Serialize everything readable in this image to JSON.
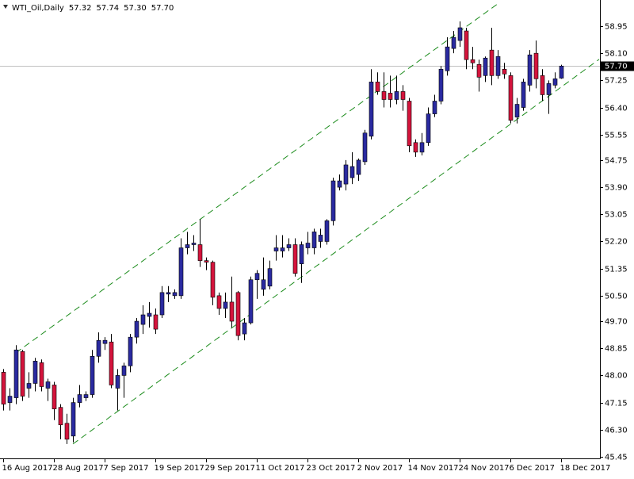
{
  "chart_data": {
    "type": "candlestick",
    "symbol": "WTI_Oil,Daily",
    "header_values": [
      "57.32",
      "57.74",
      "57.30",
      "57.70"
    ],
    "categories": [
      "16 Aug 2017",
      null,
      null,
      null,
      null,
      null,
      null,
      null,
      "28 Aug 2017",
      null,
      null,
      null,
      null,
      null,
      null,
      null,
      "7 Sep 2017",
      null,
      null,
      null,
      null,
      null,
      null,
      null,
      "19 Sep 2017",
      null,
      null,
      null,
      null,
      null,
      null,
      null,
      "29 Sep 2017",
      null,
      null,
      null,
      null,
      null,
      null,
      null,
      "11 Oct 2017",
      null,
      null,
      null,
      null,
      null,
      null,
      null,
      "23 Oct 2017",
      null,
      null,
      null,
      null,
      null,
      null,
      null,
      "2 Nov 2017",
      null,
      null,
      null,
      null,
      null,
      null,
      null,
      "14 Nov 2017",
      null,
      null,
      null,
      null,
      null,
      null,
      null,
      "24 Nov 2017",
      null,
      null,
      null,
      null,
      null,
      null,
      null,
      "6 Dec 2017",
      null,
      null,
      null,
      null,
      null,
      null,
      null,
      "18 Dec 2017"
    ],
    "open": [
      48.1,
      47.15,
      47.3,
      48.75,
      47.6,
      47.75,
      48.4,
      47.6,
      47.7,
      47.0,
      46.5,
      46.1,
      47.15,
      47.3,
      47.4,
      48.6,
      49.0,
      49.05,
      47.6,
      48.0,
      48.3,
      49.2,
      49.6,
      49.85,
      49.9,
      49.9,
      50.55,
      50.5,
      50.5,
      52.0,
      52.1,
      52.1,
      51.6,
      51.55,
      50.5,
      50.1,
      50.3,
      50.6,
      49.3,
      49.65,
      51.0,
      50.7,
      50.8,
      51.9,
      51.9,
      52.0,
      52.1,
      51.5,
      52.0,
      52.0,
      52.2,
      52.2,
      52.85,
      53.9,
      54.0,
      54.2,
      54.3,
      54.7,
      55.5,
      57.2,
      56.9,
      56.85,
      56.65,
      56.9,
      56.6,
      55.3,
      55.0,
      55.3,
      56.2,
      56.6,
      57.55,
      58.25,
      58.5,
      58.8,
      57.9,
      57.75,
      57.4,
      58.2,
      57.4,
      57.6,
      57.4,
      56.1,
      56.4,
      57.1,
      58.1,
      57.4,
      56.8,
      57.1,
      57.32
    ],
    "high": [
      48.2,
      47.6,
      48.95,
      48.8,
      48.1,
      48.55,
      48.5,
      47.9,
      47.8,
      47.1,
      46.8,
      47.3,
      47.7,
      47.5,
      48.8,
      49.35,
      49.2,
      49.3,
      48.2,
      48.4,
      49.3,
      49.8,
      50.2,
      50.3,
      50.1,
      50.8,
      50.8,
      50.7,
      52.3,
      52.5,
      52.4,
      52.9,
      51.7,
      51.6,
      50.6,
      50.6,
      51.1,
      50.65,
      49.8,
      51.1,
      51.3,
      51.7,
      51.6,
      52.4,
      52.4,
      52.3,
      52.3,
      52.2,
      52.5,
      52.6,
      52.6,
      52.9,
      54.2,
      54.3,
      54.75,
      55.0,
      54.8,
      55.7,
      57.6,
      57.5,
      57.5,
      57.4,
      57.4,
      57.1,
      56.7,
      55.4,
      55.6,
      56.4,
      56.8,
      57.7,
      58.6,
      58.8,
      59.1,
      58.9,
      58.3,
      57.9,
      58.0,
      58.9,
      58.2,
      57.8,
      57.5,
      56.7,
      57.3,
      58.2,
      58.5,
      57.6,
      57.25,
      57.5,
      57.74
    ],
    "low": [
      46.9,
      46.9,
      47.1,
      47.2,
      47.3,
      47.5,
      47.5,
      47.2,
      46.6,
      46.0,
      45.85,
      45.9,
      47.0,
      47.2,
      47.3,
      48.4,
      48.8,
      47.6,
      46.9,
      47.3,
      48.1,
      49.0,
      49.3,
      49.5,
      49.3,
      49.8,
      50.3,
      50.4,
      50.4,
      51.8,
      51.9,
      51.4,
      51.3,
      50.2,
      49.9,
      49.8,
      49.5,
      49.1,
      49.1,
      49.6,
      50.4,
      50.5,
      50.7,
      51.6,
      51.7,
      51.9,
      51.1,
      50.9,
      51.8,
      51.8,
      52.0,
      52.1,
      52.7,
      53.8,
      53.8,
      54.0,
      54.1,
      54.6,
      55.4,
      56.8,
      56.4,
      56.4,
      56.5,
      56.3,
      55.0,
      54.85,
      54.9,
      55.2,
      56.1,
      56.5,
      57.4,
      58.1,
      58.3,
      57.6,
      57.6,
      56.9,
      57.2,
      57.1,
      57.3,
      57.3,
      55.9,
      55.9,
      56.3,
      56.9,
      57.0,
      56.6,
      56.2,
      57.0,
      57.3
    ],
    "close": [
      47.1,
      47.35,
      48.8,
      47.35,
      47.75,
      48.45,
      47.65,
      47.8,
      46.95,
      46.45,
      46.0,
      47.15,
      47.4,
      47.4,
      48.6,
      49.1,
      49.1,
      47.7,
      48.0,
      48.3,
      49.2,
      49.7,
      49.9,
      49.95,
      49.45,
      50.6,
      50.6,
      50.6,
      52.0,
      52.1,
      52.15,
      51.6,
      51.55,
      50.45,
      50.1,
      50.3,
      49.7,
      49.25,
      49.65,
      51.0,
      51.2,
      51.0,
      51.35,
      52.0,
      52.0,
      52.1,
      51.2,
      52.1,
      52.15,
      52.5,
      52.4,
      52.85,
      54.1,
      54.1,
      54.6,
      54.55,
      54.75,
      55.6,
      57.2,
      56.9,
      56.65,
      56.65,
      56.9,
      56.65,
      55.2,
      55.0,
      55.3,
      56.2,
      56.6,
      57.6,
      58.3,
      58.6,
      58.9,
      57.9,
      57.8,
      57.35,
      57.95,
      57.4,
      58.0,
      57.45,
      56.0,
      56.5,
      57.2,
      58.05,
      57.3,
      56.8,
      57.15,
      57.3,
      57.7
    ],
    "up_color": "#2a2aa0",
    "down_color": "#d4143c",
    "last_price": {
      "value": 57.7,
      "label": "57.70"
    },
    "channels": [
      {
        "x": [
          2,
          78
        ],
        "y": [
          48.71,
          59.65
        ]
      },
      {
        "x": [
          11,
          94
        ],
        "y": [
          45.85,
          57.91
        ]
      }
    ],
    "channel_color": "#1c8c1c",
    "ylim": [
      45.4,
      59.77
    ],
    "yticks": [
      58.95,
      {
        "value": 58.1,
        "label": "58.10"
      },
      57.25,
      {
        "value": 56.4,
        "label": "56.40"
      },
      55.55,
      54.75,
      {
        "value": 53.9,
        "label": "53.90"
      },
      53.05,
      {
        "value": 52.2,
        "label": "52.20"
      },
      51.35,
      {
        "value": 50.5,
        "label": "50.50"
      },
      {
        "value": 49.7,
        "label": "49.70"
      },
      48.85,
      {
        "value": 48,
        "label": "48.00"
      },
      47.15,
      {
        "value": 46.3,
        "label": "46.30"
      },
      45.45
    ]
  }
}
